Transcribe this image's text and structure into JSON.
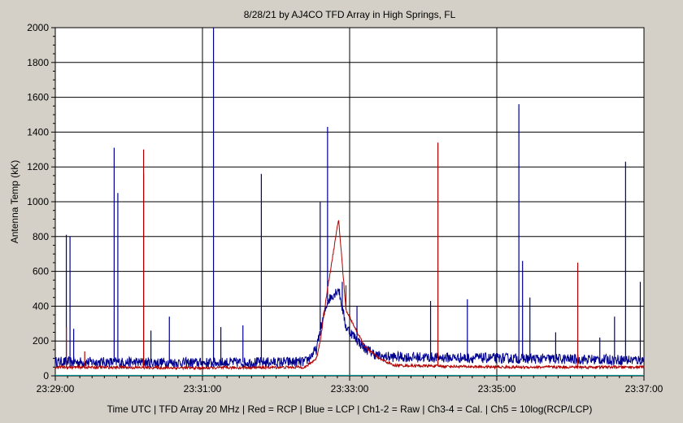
{
  "chart_data": {
    "type": "line",
    "title": "8/28/21  by  AJ4CO TFD Array  in  High Springs, FL",
    "ylabel": "Antenna Temp (kK)",
    "xlabel": "Time UTC  |  TFD Array 20 MHz  |  Red = RCP  |  Blue = LCP  |  Ch1-2 = Raw  |  Ch3-4 = Cal.  |  Ch5 = 10log(RCP/LCP)",
    "ylim": [
      0,
      2000
    ],
    "xlim_minutes": [
      0,
      8
    ],
    "x_tick_labels": [
      "23:29:00",
      "23:31:00",
      "23:33:00",
      "23:35:00",
      "23:37:00"
    ],
    "y_ticks": [
      0,
      200,
      400,
      600,
      800,
      1000,
      1200,
      1400,
      1600,
      1800,
      2000
    ],
    "grid": true,
    "colors": {
      "rcp": "#b00000",
      "lcp": "#000090",
      "ch5": "#00a0a0"
    },
    "series": [
      {
        "name": "RCP",
        "baseline": [
          [
            0,
            50
          ],
          [
            2,
            45
          ],
          [
            3.4,
            50
          ],
          [
            3.55,
            100
          ],
          [
            3.6,
            200
          ],
          [
            3.7,
            500
          ],
          [
            3.85,
            900
          ],
          [
            3.95,
            380
          ],
          [
            4.2,
            170
          ],
          [
            4.4,
            100
          ],
          [
            4.6,
            60
          ],
          [
            6,
            50
          ],
          [
            8,
            50
          ]
        ],
        "spikes": [
          [
            1.2,
            1300
          ],
          [
            5.2,
            1340
          ],
          [
            3.95,
            520
          ],
          [
            0.15,
            280
          ],
          [
            0.4,
            140
          ],
          [
            7.1,
            650
          ]
        ]
      },
      {
        "name": "LCP",
        "baseline": [
          [
            0,
            80
          ],
          [
            2,
            75
          ],
          [
            3.4,
            80
          ],
          [
            3.55,
            150
          ],
          [
            3.6,
            260
          ],
          [
            3.7,
            430
          ],
          [
            3.85,
            500
          ],
          [
            3.95,
            280
          ],
          [
            4.2,
            160
          ],
          [
            4.4,
            110
          ],
          [
            8,
            90
          ]
        ],
        "spikes": [
          [
            0.15,
            810
          ],
          [
            0.2,
            800
          ],
          [
            0.25,
            270
          ],
          [
            0.8,
            1310
          ],
          [
            0.85,
            1050
          ],
          [
            1.2,
            1160
          ],
          [
            1.3,
            260
          ],
          [
            1.55,
            340
          ],
          [
            2.15,
            2000
          ],
          [
            2.25,
            280
          ],
          [
            2.55,
            290
          ],
          [
            2.8,
            1160
          ],
          [
            3.6,
            1000
          ],
          [
            3.7,
            1430
          ],
          [
            3.9,
            540
          ],
          [
            4.1,
            400
          ],
          [
            5.1,
            430
          ],
          [
            5.6,
            440
          ],
          [
            6.3,
            1560
          ],
          [
            6.35,
            660
          ],
          [
            6.45,
            450
          ],
          [
            6.8,
            250
          ],
          [
            7.4,
            220
          ],
          [
            7.6,
            340
          ],
          [
            7.75,
            1230
          ],
          [
            7.95,
            540
          ]
        ]
      }
    ]
  }
}
